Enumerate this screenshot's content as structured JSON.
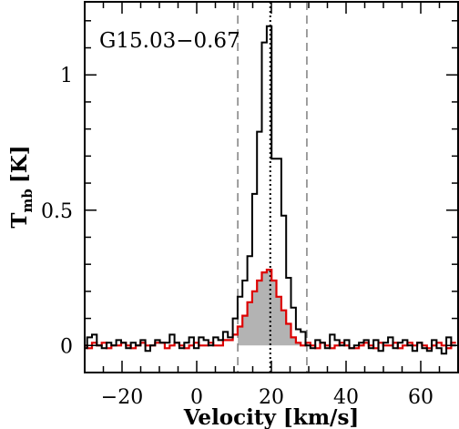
{
  "chart_data": {
    "type": "line",
    "title": "",
    "annotation": "G15.03−0.67",
    "xlabel": "Velocity [km/s]",
    "ylabel_main": "T",
    "ylabel_sub": "mb",
    "ylabel_unit": "[K]",
    "xlim": [
      -30,
      70
    ],
    "ylim": [
      -0.1,
      1.27
    ],
    "x_ticks": [
      -20,
      0,
      20,
      40,
      60
    ],
    "x_tick_labels": [
      "−20",
      "0",
      "20",
      "40",
      "60"
    ],
    "y_ticks": [
      0,
      0.5,
      1
    ],
    "y_tick_labels": [
      "0",
      "0.5",
      "1"
    ],
    "vlines": [
      {
        "x": 11,
        "style": "dashed",
        "color": "#808080"
      },
      {
        "x": 19.7,
        "style": "dotted",
        "color": "#000000"
      },
      {
        "x": 29.5,
        "style": "dashed",
        "color": "#808080"
      }
    ],
    "grid": false,
    "series": [
      {
        "style": "step",
        "color": "#000000",
        "x": [
          -30,
          -28.7,
          -27.4,
          -26.1,
          -24.8,
          -23.5,
          -22.2,
          -20.9,
          -19.6,
          -18.3,
          -17,
          -15.7,
          -14.4,
          -13.1,
          -11.8,
          -10.5,
          -9.2,
          -7.9,
          -6.6,
          -5.3,
          -4,
          -2.7,
          -1.4,
          -0.1,
          1.2,
          2.5,
          3.8,
          5.1,
          6.4,
          7.7,
          9,
          10.3,
          11.6,
          12.9,
          14.2,
          15.5,
          16.8,
          18.1,
          19.4,
          20.7,
          22,
          23.3,
          24.6,
          25.9,
          27.2,
          28.5,
          29.8,
          31.1,
          32.4,
          33.7,
          35,
          36.3,
          37.6,
          38.9,
          40.2,
          41.5,
          42.8,
          44.1,
          45.4,
          46.7,
          48,
          49.3,
          50.6,
          51.9,
          53.2,
          54.5,
          55.8,
          57.1,
          58.4,
          59.7,
          61,
          62.3,
          63.6,
          64.9,
          66.2,
          67.5,
          68.8
        ],
        "y": [
          -0.01,
          0.03,
          0.04,
          0.0,
          -0.01,
          0.01,
          0.0,
          0.02,
          0.01,
          -0.01,
          0.01,
          0.0,
          0.02,
          -0.02,
          0.0,
          0.02,
          0.01,
          0.01,
          0.04,
          0.01,
          -0.01,
          0.01,
          0.03,
          -0.01,
          0.03,
          0.02,
          0.0,
          0.03,
          0.02,
          0.05,
          0.03,
          0.1,
          0.18,
          0.24,
          0.33,
          0.56,
          0.79,
          1.12,
          1.18,
          0.69,
          0.69,
          0.48,
          0.25,
          0.14,
          0.06,
          0.05,
          0.0,
          -0.01,
          0.02,
          0.01,
          -0.01,
          0.04,
          0.02,
          0.0,
          0.02,
          -0.01,
          0.0,
          0.01,
          0.02,
          -0.01,
          0.02,
          -0.02,
          0.01,
          0.03,
          -0.01,
          0.01,
          0.02,
          0.0,
          -0.02,
          0.01,
          -0.01,
          -0.02,
          0.02,
          -0.01,
          -0.03,
          0.03,
          0.0
        ]
      },
      {
        "style": "step-filled",
        "color": "#dd0000",
        "fill": "#b3b3b3",
        "x": [
          -30,
          -28.7,
          -27.4,
          -26.1,
          -24.8,
          -23.5,
          -22.2,
          -20.9,
          -19.6,
          -18.3,
          -17,
          -15.7,
          -14.4,
          -13.1,
          -11.8,
          -10.5,
          -9.2,
          -7.9,
          -6.6,
          -5.3,
          -4,
          -2.7,
          -1.4,
          -0.1,
          1.2,
          2.5,
          3.8,
          5.1,
          6.4,
          7.7,
          9,
          10.3,
          11.6,
          12.9,
          14.2,
          15.5,
          16.8,
          18.1,
          19.4,
          20.7,
          22,
          23.3,
          24.6,
          25.9,
          27.2,
          28.5,
          29.8,
          31.1,
          32.4,
          33.7,
          35,
          36.3,
          37.6,
          38.9,
          40.2,
          41.5,
          42.8,
          44.1,
          45.4,
          46.7,
          48,
          49.3,
          50.6,
          51.9,
          53.2,
          54.5,
          55.8,
          57.1,
          58.4,
          59.7,
          61,
          62.3,
          63.6,
          64.9,
          66.2,
          67.5,
          68.8
        ],
        "y": [
          0.0,
          -0.01,
          0.01,
          0.0,
          0.01,
          -0.01,
          0.0,
          0.0,
          0.01,
          0.0,
          -0.01,
          0.0,
          0.01,
          0.0,
          0.0,
          0.01,
          0.01,
          -0.01,
          0.0,
          0.01,
          0.0,
          -0.01,
          0.0,
          0.01,
          0.0,
          0.0,
          0.01,
          0.0,
          0.0,
          0.02,
          0.02,
          0.04,
          0.07,
          0.11,
          0.16,
          0.2,
          0.24,
          0.27,
          0.28,
          0.24,
          0.18,
          0.13,
          0.08,
          0.03,
          0.01,
          0.0,
          0.01,
          0.0,
          -0.01,
          0.01,
          0.0,
          -0.01,
          0.0,
          0.01,
          0.0,
          -0.01,
          -0.01,
          0.0,
          0.01,
          0.0,
          -0.01,
          0.01,
          0.0,
          0.0,
          0.01,
          -0.01,
          0.0,
          0.01,
          0.0,
          0.01,
          0.0,
          -0.01,
          0.0,
          0.01,
          0.0,
          -0.01,
          0.01
        ]
      }
    ]
  }
}
